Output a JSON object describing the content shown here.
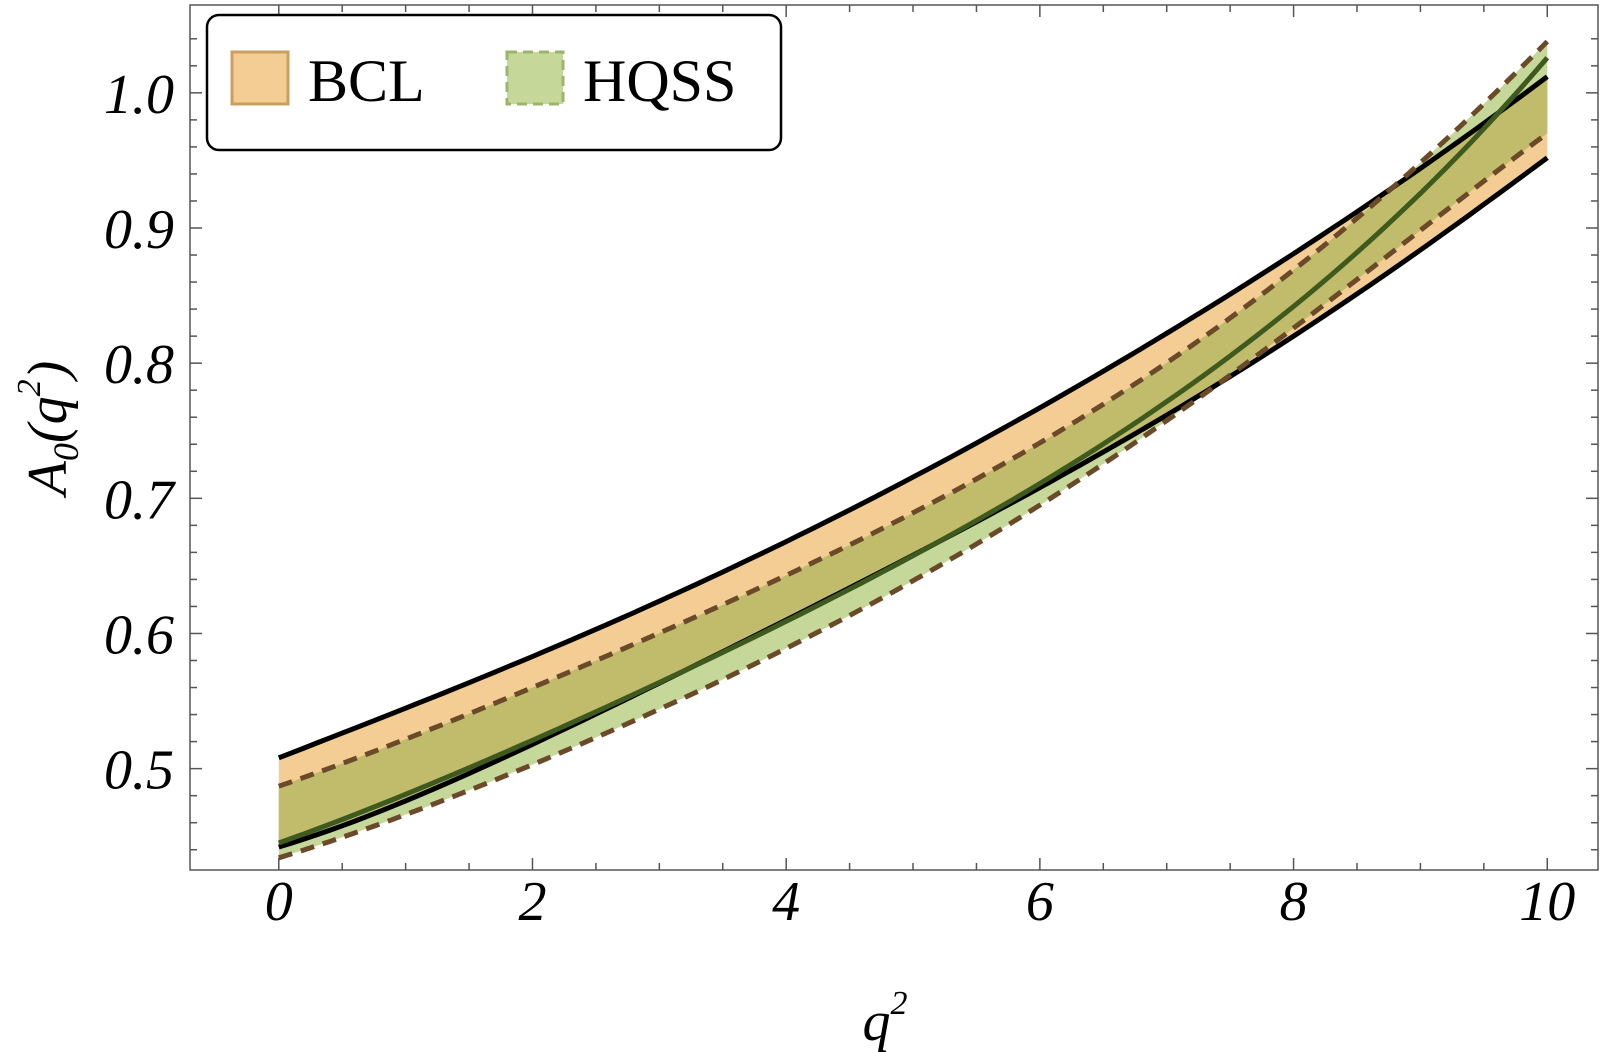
{
  "chart_data": {
    "type": "area",
    "x_label": "q",
    "x_label_sup": "2",
    "y_label_main": "A",
    "y_label_sub": "0",
    "y_label_open": "(q",
    "y_label_sup": "2",
    "y_label_close": ")",
    "xlim": [
      -0.7,
      10.4
    ],
    "ylim": [
      0.425,
      1.065
    ],
    "x_ticks": [
      0,
      2,
      4,
      6,
      8,
      10
    ],
    "x_tick_labels": [
      "0",
      "2",
      "4",
      "6",
      "8",
      "10"
    ],
    "y_ticks": [
      0.5,
      0.6,
      0.7,
      0.8,
      0.9,
      1.0
    ],
    "y_tick_labels": [
      "0.5",
      "0.6",
      "0.7",
      "0.8",
      "0.9",
      "1.0"
    ],
    "legend_position": "top-left",
    "series": [
      {
        "name": "BCL",
        "fill_color": "#f3cd94",
        "edge_color": "#000000",
        "edge_style": "solid",
        "x": [
          0,
          2,
          4,
          6,
          8,
          10
        ],
        "upper": [
          0.508,
          0.583,
          0.668,
          0.767,
          0.881,
          1.012
        ],
        "lower": [
          0.442,
          0.518,
          0.61,
          0.708,
          0.82,
          0.952
        ]
      },
      {
        "name": "HQSS",
        "fill_color": "#c5d89a",
        "overlap_color": "#c1bc6b",
        "edge_color": "#6b4a2a",
        "edge_style": "dashed",
        "central_color": "#3f5a1e",
        "x": [
          0,
          2,
          4,
          6,
          8,
          10
        ],
        "upper": [
          0.487,
          0.56,
          0.643,
          0.741,
          0.869,
          1.038
        ],
        "lower": [
          0.434,
          0.503,
          0.589,
          0.695,
          0.826,
          0.97
        ],
        "central": [
          0.445,
          0.521,
          0.609,
          0.711,
          0.842,
          1.026
        ]
      }
    ]
  }
}
